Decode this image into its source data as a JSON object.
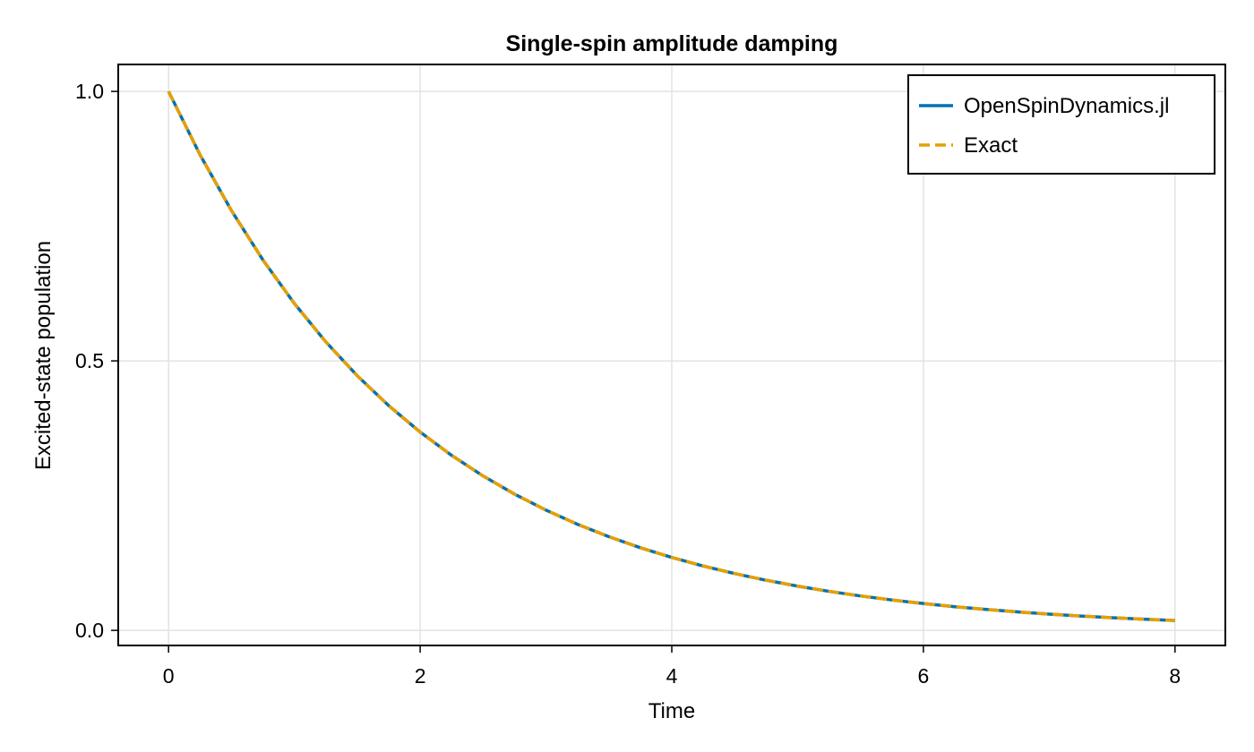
{
  "chart_data": {
    "type": "line",
    "title": "Single-spin amplitude damping",
    "xlabel": "Time",
    "ylabel": "Excited-state population",
    "xlim": [
      -0.4,
      8.4
    ],
    "ylim": [
      -0.028,
      1.05
    ],
    "xticks": [
      0,
      2,
      4,
      6,
      8
    ],
    "xtick_labels": [
      "0",
      "2",
      "4",
      "6",
      "8"
    ],
    "yticks": [
      0.0,
      0.5,
      1.0
    ],
    "ytick_labels": [
      "0.0",
      "0.5",
      "1.0"
    ],
    "grid": true,
    "legend_position": "top-right",
    "x": [
      0,
      0.25,
      0.5,
      0.75,
      1,
      1.25,
      1.5,
      1.75,
      2,
      2.25,
      2.5,
      2.75,
      3,
      3.25,
      3.5,
      3.75,
      4,
      4.25,
      4.5,
      4.75,
      5,
      5.25,
      5.5,
      5.75,
      6,
      6.25,
      6.5,
      6.75,
      7,
      7.25,
      7.5,
      7.75,
      8
    ],
    "series": [
      {
        "name": "OpenSpinDynamics.jl",
        "color": "#0072b2",
        "style": "solid",
        "values": [
          1.0,
          0.8825,
          0.7788,
          0.6873,
          0.6065,
          0.5353,
          0.4724,
          0.4169,
          0.3679,
          0.3247,
          0.2865,
          0.2528,
          0.2231,
          0.1969,
          0.1738,
          0.1534,
          0.1353,
          0.1194,
          0.1054,
          0.093,
          0.0821,
          0.0724,
          0.0639,
          0.0564,
          0.0498,
          0.0439,
          0.0388,
          0.0342,
          0.0302,
          0.0266,
          0.0235,
          0.0207,
          0.0183
        ]
      },
      {
        "name": "Exact",
        "color": "#e69f00",
        "style": "dashed",
        "values": [
          1.0,
          0.8825,
          0.7788,
          0.6873,
          0.6065,
          0.5353,
          0.4724,
          0.4169,
          0.3679,
          0.3247,
          0.2865,
          0.2528,
          0.2231,
          0.1969,
          0.1738,
          0.1534,
          0.1353,
          0.1194,
          0.1054,
          0.093,
          0.0821,
          0.0724,
          0.0639,
          0.0564,
          0.0498,
          0.0439,
          0.0388,
          0.0342,
          0.0302,
          0.0266,
          0.0235,
          0.0207,
          0.0183
        ]
      }
    ]
  }
}
